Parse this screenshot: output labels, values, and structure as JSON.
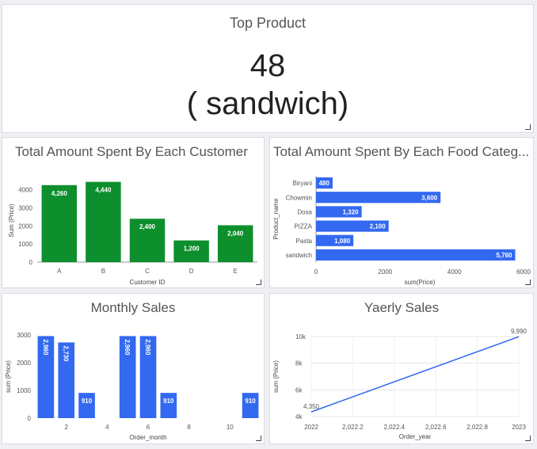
{
  "kpi": {
    "title": "Top Product",
    "value": "48",
    "product": "( sandwich)"
  },
  "customers": {
    "title": "Total Amount Spent By Each Customer",
    "chart_data": {
      "type": "bar",
      "categories": [
        "A",
        "B",
        "C",
        "D",
        "E"
      ],
      "values": [
        4260,
        4440,
        2400,
        1200,
        2040
      ],
      "value_labels": [
        "4,260",
        "4,440",
        "2,400",
        "1,200",
        "2,040"
      ],
      "xlabel": "Customer ID",
      "ylabel": "Sum (Price)",
      "ylim": [
        0,
        4600
      ],
      "yticks": [
        0,
        1000,
        2000,
        3000,
        4000
      ],
      "color": "#0e8f2e"
    }
  },
  "food": {
    "title": "Total Amount Spent By Each Food Categ...",
    "chart_data": {
      "type": "bar",
      "orientation": "horizontal",
      "categories": [
        "Biryani",
        "Chowmin",
        "Dosa",
        "PIZZA",
        "Pasta",
        "sandwich"
      ],
      "values": [
        480,
        3600,
        1320,
        2100,
        1080,
        5760
      ],
      "value_labels": [
        "480",
        "3,600",
        "1,320",
        "2,100",
        "1,080",
        "5,760"
      ],
      "xlabel": "sum(Price)",
      "ylabel": "Product_name",
      "xlim": [
        0,
        6000
      ],
      "xticks": [
        0,
        2000,
        4000,
        6000
      ],
      "color": "#3369f0"
    }
  },
  "monthly": {
    "title": "Monthly Sales",
    "chart_data": {
      "type": "bar",
      "x": [
        1,
        2,
        3,
        5,
        6,
        7,
        11
      ],
      "values": [
        2960,
        2730,
        910,
        2960,
        2960,
        910,
        910
      ],
      "value_labels": [
        "2,960",
        "2,730",
        "910",
        "2,960",
        "2,960",
        "910",
        "910"
      ],
      "xlabel": "Order_month",
      "ylabel": "sum (Price)",
      "xlim": [
        0.5,
        11.5
      ],
      "xticks": [
        2,
        4,
        6,
        8,
        10
      ],
      "ylim": [
        0,
        3000
      ],
      "yticks": [
        0,
        1000,
        2000,
        3000
      ],
      "color": "#3369f0"
    }
  },
  "yearly": {
    "title": "Yaerly Sales",
    "chart_data": {
      "type": "line",
      "x": [
        2022,
        2023
      ],
      "values": [
        4350,
        9990
      ],
      "value_labels": [
        "4,350",
        "9,990"
      ],
      "xlabel": "Order_year",
      "ylabel": "sum (Price)",
      "xlim": [
        2022,
        2023
      ],
      "xticks": [
        2022,
        2022.2,
        2022.4,
        2022.6,
        2022.8,
        2023
      ],
      "xtick_labels": [
        "2022",
        "2,022.2",
        "2,022.4",
        "2,022.6",
        "2,022.8",
        "2023"
      ],
      "ylim": [
        4000,
        10000
      ],
      "yticks": [
        4000,
        6000,
        8000,
        10000
      ],
      "ytick_labels": [
        "4k",
        "6k",
        "8k",
        "10k"
      ],
      "grid": true,
      "color": "#3369f0"
    }
  }
}
